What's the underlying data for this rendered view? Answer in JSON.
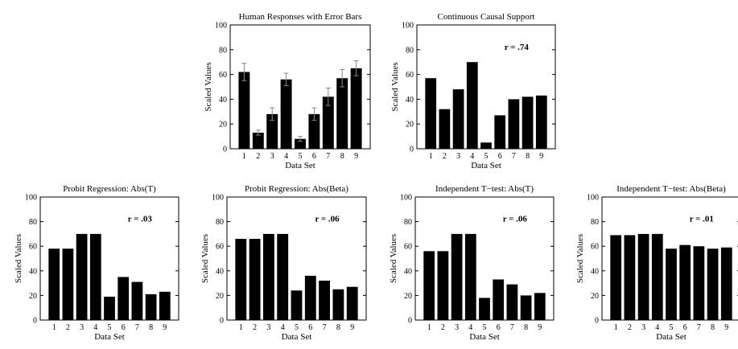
{
  "chart_data": [
    {
      "type": "bar",
      "title": "Human Responses with Error Bars",
      "xlabel": "Data Set",
      "ylabel": "Scaled Values",
      "categories": [
        "1",
        "2",
        "3",
        "4",
        "5",
        "6",
        "7",
        "8",
        "9"
      ],
      "values": [
        62,
        13,
        28,
        56,
        8,
        28,
        42,
        57,
        65
      ],
      "errors": [
        7,
        2,
        5,
        5,
        2,
        5,
        7,
        7,
        6
      ],
      "ylim": [
        0,
        100
      ],
      "yticks": [
        "0",
        "20",
        "40",
        "60",
        "80",
        "100"
      ],
      "annotation": ""
    },
    {
      "type": "bar",
      "title": "Continuous Causal Support",
      "xlabel": "Data Set",
      "ylabel": "Scaled Values",
      "categories": [
        "1",
        "2",
        "3",
        "4",
        "5",
        "6",
        "7",
        "8",
        "9"
      ],
      "values": [
        57,
        32,
        48,
        70,
        5,
        27,
        40,
        42,
        43
      ],
      "ylim": [
        0,
        100
      ],
      "yticks": [
        "0",
        "20",
        "40",
        "60",
        "80",
        "100"
      ],
      "annotation": "r = .74"
    },
    {
      "type": "bar",
      "title": "Probit Regression: Abs(T)",
      "xlabel": "Data Set",
      "ylabel": "Scaled Values",
      "categories": [
        "1",
        "2",
        "3",
        "4",
        "5",
        "6",
        "7",
        "8",
        "9"
      ],
      "values": [
        58,
        58,
        70,
        70,
        19,
        35,
        31,
        21,
        23
      ],
      "ylim": [
        0,
        100
      ],
      "yticks": [
        "0",
        "20",
        "40",
        "60",
        "80",
        "100"
      ],
      "annotation": "r = .03"
    },
    {
      "type": "bar",
      "title": "Probit Regression: Abs(Beta)",
      "xlabel": "Data Set",
      "ylabel": "Scaled Values",
      "categories": [
        "1",
        "2",
        "3",
        "4",
        "5",
        "6",
        "7",
        "8",
        "9"
      ],
      "values": [
        66,
        66,
        70,
        70,
        24,
        36,
        32,
        25,
        27
      ],
      "ylim": [
        0,
        100
      ],
      "yticks": [
        "0",
        "20",
        "40",
        "60",
        "80",
        "100"
      ],
      "annotation": "r = .06"
    },
    {
      "type": "bar",
      "title": "Independent T−test: Abs(T)",
      "xlabel": "Data Set",
      "ylabel": "Scaled Values",
      "categories": [
        "1",
        "2",
        "3",
        "4",
        "5",
        "6",
        "7",
        "8",
        "9"
      ],
      "values": [
        56,
        56,
        70,
        70,
        18,
        33,
        29,
        20,
        22
      ],
      "ylim": [
        0,
        100
      ],
      "yticks": [
        "0",
        "20",
        "40",
        "60",
        "80",
        "100"
      ],
      "annotation": "r = .06"
    },
    {
      "type": "bar",
      "title": "Independent T−test: Abs(Beta)",
      "xlabel": "Data Set",
      "ylabel": "Scaled Values",
      "categories": [
        "1",
        "2",
        "3",
        "4",
        "5",
        "6",
        "7",
        "8",
        "9"
      ],
      "values": [
        69,
        69,
        70,
        70,
        58,
        61,
        60,
        58,
        59
      ],
      "ylim": [
        0,
        100
      ],
      "yticks": [
        "0",
        "20",
        "40",
        "60",
        "80",
        "100"
      ],
      "annotation": "r = .01"
    }
  ]
}
